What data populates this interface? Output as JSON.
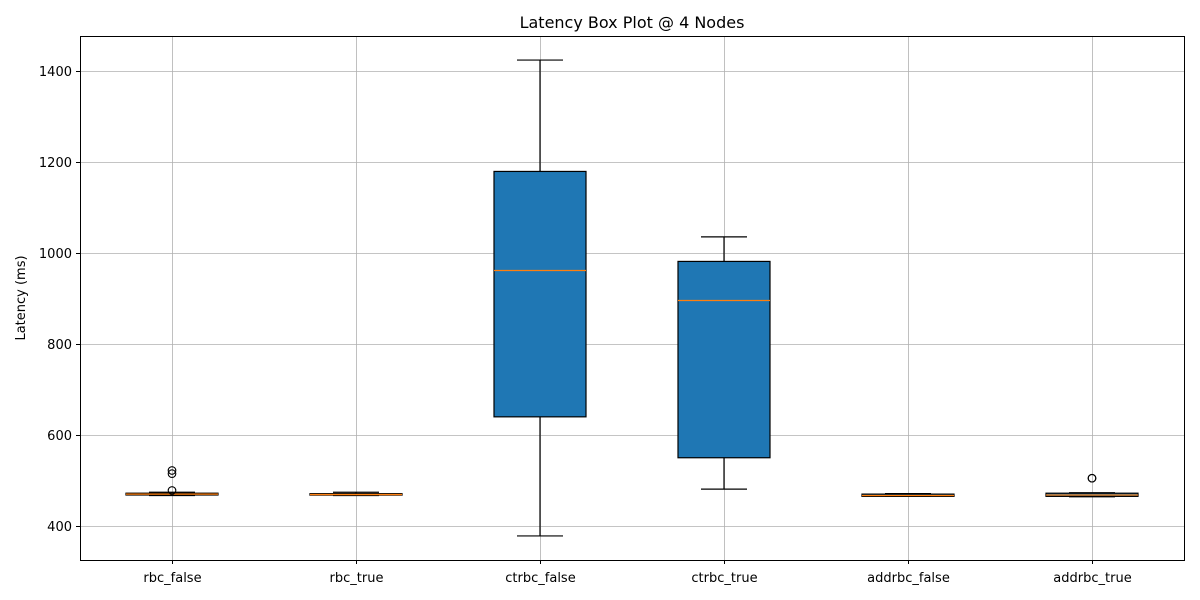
{
  "chart_data": {
    "type": "box",
    "title": "Latency Box Plot @ 4 Nodes",
    "xlabel": "",
    "ylabel": "Latency (ms)",
    "ylim": [
      325,
      1478
    ],
    "yticks": [
      400,
      600,
      800,
      1000,
      1200,
      1400
    ],
    "grid": true,
    "box_color": "#1f77b4",
    "median_color": "#ff7f0e",
    "categories": [
      "rbc_false",
      "rbc_true",
      "ctrbc_false",
      "ctrbc_true",
      "addrbc_false",
      "addrbc_true"
    ],
    "boxes": [
      {
        "name": "rbc_false",
        "whisker_low": 467,
        "q1": 468,
        "median": 470,
        "q3": 472,
        "whisker_high": 474,
        "outliers": [
          522,
          515,
          478
        ]
      },
      {
        "name": "rbc_true",
        "whisker_low": 467,
        "q1": 468,
        "median": 469,
        "q3": 471,
        "whisker_high": 474,
        "outliers": []
      },
      {
        "name": "ctrbc_false",
        "whisker_low": 378,
        "q1": 640,
        "median": 962,
        "q3": 1180,
        "whisker_high": 1425,
        "outliers": []
      },
      {
        "name": "ctrbc_true",
        "whisker_low": 481,
        "q1": 550,
        "median": 896,
        "q3": 982,
        "whisker_high": 1036,
        "outliers": []
      },
      {
        "name": "addrbc_false",
        "whisker_low": 465,
        "q1": 465,
        "median": 467,
        "q3": 470,
        "whisker_high": 471,
        "outliers": []
      },
      {
        "name": "addrbc_true",
        "whisker_low": 464,
        "q1": 465,
        "median": 468,
        "q3": 472,
        "whisker_high": 473,
        "outliers": [
          505,
          505
        ]
      }
    ]
  }
}
